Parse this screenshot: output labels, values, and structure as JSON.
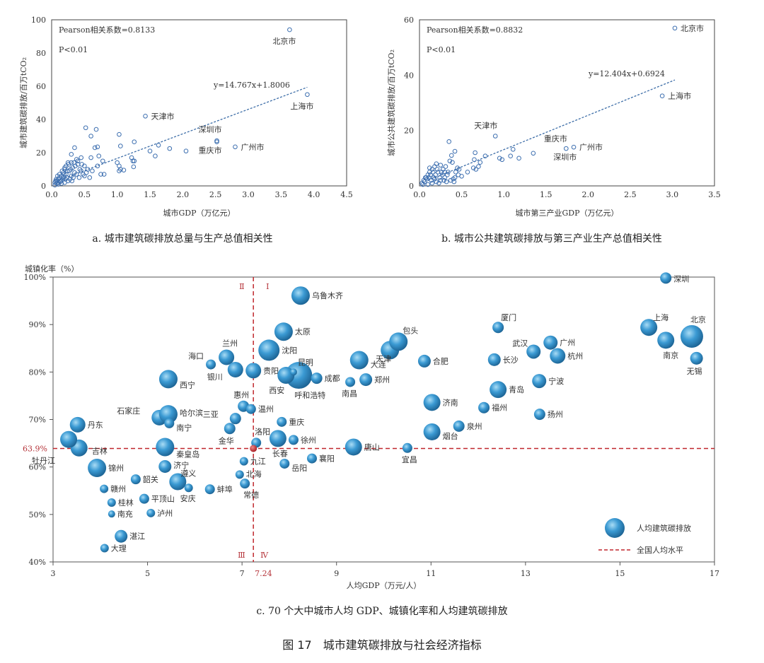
{
  "figure_title": "图 17　城市建筑碳排放与社会经济指标",
  "chart_data": [
    {
      "id": "a",
      "type": "scatter",
      "caption": "a. 城市建筑碳排放总量与生产总值相关性",
      "xlabel": "城市GDP（万亿元）",
      "ylabel": "城市建筑碳排放/百万tCO₂",
      "xlim": [
        0,
        4.5
      ],
      "ylim": [
        0,
        100
      ],
      "xticks": [
        "0.0",
        "0.5",
        "1.0",
        "1.5",
        "2.0",
        "2.5",
        "3.0",
        "3.5",
        "4.0",
        "4.5"
      ],
      "yticks": [
        "0",
        "20",
        "40",
        "60",
        "80",
        "100"
      ],
      "pearson": "Pearson相关系数=0.8133",
      "p_value": "P<0.01",
      "trend_label": "y=14.767x+1.8006",
      "trend": {
        "slope": 14.767,
        "intercept": 1.8006,
        "x_range": [
          0.15,
          3.9
        ]
      },
      "labeled_points": [
        {
          "name": "北京市",
          "x": 3.63,
          "y": 94
        },
        {
          "name": "上海市",
          "x": 3.9,
          "y": 55
        },
        {
          "name": "天津市",
          "x": 1.43,
          "y": 42
        },
        {
          "name": "深圳市",
          "x": 2.52,
          "y": 27.2
        },
        {
          "name": "重庆市",
          "x": 2.52,
          "y": 26.5
        },
        {
          "name": "广州市",
          "x": 2.8,
          "y": 23.5
        }
      ],
      "points": [
        [
          0.05,
          2
        ],
        [
          0.08,
          3
        ],
        [
          0.1,
          4
        ],
        [
          0.12,
          5
        ],
        [
          0.15,
          6
        ],
        [
          0.18,
          8
        ],
        [
          0.2,
          10
        ],
        [
          0.22,
          12
        ],
        [
          0.25,
          14
        ],
        [
          0.3,
          19
        ],
        [
          0.35,
          23
        ],
        [
          0.38,
          16
        ],
        [
          0.4,
          13
        ],
        [
          0.45,
          17
        ],
        [
          0.5,
          12
        ],
        [
          0.52,
          35
        ],
        [
          0.6,
          30
        ],
        [
          0.68,
          34
        ],
        [
          0.66,
          23
        ],
        [
          0.7,
          23.5
        ],
        [
          0.6,
          17
        ],
        [
          0.72,
          18
        ],
        [
          0.78,
          15
        ],
        [
          0.7,
          12
        ],
        [
          0.75,
          7
        ],
        [
          0.8,
          7
        ],
        [
          0.55,
          10
        ],
        [
          0.62,
          9
        ],
        [
          0.45,
          9
        ],
        [
          0.35,
          8
        ],
        [
          0.3,
          6
        ],
        [
          0.28,
          4
        ],
        [
          0.25,
          3
        ],
        [
          0.2,
          2
        ],
        [
          0.15,
          1.5
        ],
        [
          0.1,
          1
        ],
        [
          0.05,
          0.5
        ],
        [
          0.42,
          5
        ],
        [
          0.5,
          6
        ],
        [
          0.58,
          5
        ],
        [
          1.0,
          14
        ],
        [
          1.03,
          31
        ],
        [
          1.05,
          24
        ],
        [
          1.03,
          12
        ],
        [
          1.05,
          10
        ],
        [
          1.03,
          9
        ],
        [
          1.1,
          9.5
        ],
        [
          1.22,
          17
        ],
        [
          1.24,
          15
        ],
        [
          1.26,
          15
        ],
        [
          1.25,
          11.5
        ],
        [
          1.26,
          26.5
        ],
        [
          1.5,
          21
        ],
        [
          1.58,
          18
        ],
        [
          1.63,
          24.5
        ],
        [
          1.8,
          22.5
        ],
        [
          2.05,
          21
        ],
        [
          0.18,
          5
        ],
        [
          0.22,
          7
        ],
        [
          0.27,
          9
        ],
        [
          0.32,
          11
        ],
        [
          0.36,
          12
        ],
        [
          0.4,
          15
        ],
        [
          0.14,
          3
        ],
        [
          0.12,
          7
        ],
        [
          0.16,
          9
        ],
        [
          0.2,
          11
        ],
        [
          0.3,
          14
        ],
        [
          0.26,
          13
        ],
        [
          0.33,
          5
        ],
        [
          0.38,
          7
        ],
        [
          0.48,
          7
        ],
        [
          0.53,
          8
        ],
        [
          0.08,
          1.5
        ],
        [
          0.13,
          2.5
        ],
        [
          0.17,
          4
        ],
        [
          0.23,
          5
        ],
        [
          0.09,
          6
        ],
        [
          0.19,
          7
        ],
        [
          0.24,
          9
        ],
        [
          0.29,
          10
        ],
        [
          0.07,
          4
        ],
        [
          0.11,
          2
        ],
        [
          0.34,
          14
        ],
        [
          0.43,
          10
        ],
        [
          0.46,
          13
        ],
        [
          0.31,
          3
        ],
        [
          0.21,
          4
        ],
        [
          0.06,
          3
        ]
      ]
    },
    {
      "id": "b",
      "type": "scatter",
      "caption": "b. 城市公共建筑碳排放与第三产业生产总值相关性",
      "xlabel": "城市第三产业GDP（万亿元）",
      "ylabel": "城市公共建筑碳排放/百万tCO₂",
      "xlim": [
        0,
        3.5
      ],
      "ylim": [
        0,
        60
      ],
      "xticks": [
        "0.0",
        "0.5",
        "1.0",
        "1.5",
        "2.0",
        "2.5",
        "3.0",
        "3.5"
      ],
      "yticks": [
        "0",
        "20",
        "40",
        "60"
      ],
      "pearson": "Pearson相关系数=0.8832",
      "p_value": "P<0.01",
      "trend_label": "y=12.404x+0.6924",
      "trend": {
        "slope": 12.404,
        "intercept": 0.6924,
        "x_range": [
          0.1,
          3.03
        ]
      },
      "labeled_points": [
        {
          "name": "北京市",
          "x": 3.03,
          "y": 57
        },
        {
          "name": "上海市",
          "x": 2.88,
          "y": 32.5
        },
        {
          "name": "天津市",
          "x": 0.9,
          "y": 18
        },
        {
          "name": "重庆市",
          "x": 1.35,
          "y": 11.8
        },
        {
          "name": "深圳市",
          "x": 1.74,
          "y": 13.5
        },
        {
          "name": "广州市",
          "x": 1.83,
          "y": 14
        }
      ],
      "points": [
        [
          0.03,
          1
        ],
        [
          0.05,
          2
        ],
        [
          0.08,
          3
        ],
        [
          0.1,
          4
        ],
        [
          0.12,
          5
        ],
        [
          0.15,
          6
        ],
        [
          0.18,
          7
        ],
        [
          0.2,
          8
        ],
        [
          0.25,
          7.5
        ],
        [
          0.28,
          6
        ],
        [
          0.3,
          5
        ],
        [
          0.35,
          16
        ],
        [
          0.38,
          11
        ],
        [
          0.42,
          12.5
        ],
        [
          0.36,
          9
        ],
        [
          0.39,
          8.5
        ],
        [
          0.45,
          6.5
        ],
        [
          0.47,
          6
        ],
        [
          0.5,
          3.5
        ],
        [
          0.42,
          3
        ],
        [
          0.4,
          2.5
        ],
        [
          0.33,
          4
        ],
        [
          0.3,
          3
        ],
        [
          0.25,
          2
        ],
        [
          0.2,
          1.5
        ],
        [
          0.15,
          1
        ],
        [
          0.1,
          0.5
        ],
        [
          0.57,
          5
        ],
        [
          0.64,
          6.5
        ],
        [
          0.65,
          9.5
        ],
        [
          0.66,
          12
        ],
        [
          0.67,
          6
        ],
        [
          0.7,
          7
        ],
        [
          0.72,
          8.5
        ],
        [
          0.78,
          10.8
        ],
        [
          0.95,
          10
        ],
        [
          0.98,
          9.5
        ],
        [
          1.08,
          10.8
        ],
        [
          1.11,
          13.2
        ],
        [
          1.18,
          10
        ],
        [
          0.06,
          1.5
        ],
        [
          0.09,
          2.5
        ],
        [
          0.11,
          3
        ],
        [
          0.13,
          4
        ],
        [
          0.16,
          5
        ],
        [
          0.19,
          4
        ],
        [
          0.22,
          5
        ],
        [
          0.24,
          3
        ],
        [
          0.27,
          4
        ],
        [
          0.14,
          2
        ],
        [
          0.07,
          3
        ],
        [
          0.12,
          6.5
        ],
        [
          0.17,
          3
        ],
        [
          0.21,
          6
        ],
        [
          0.26,
          5
        ],
        [
          0.31,
          7
        ],
        [
          0.34,
          5
        ],
        [
          0.43,
          5
        ],
        [
          0.04,
          0.5
        ],
        [
          0.18,
          2.5
        ],
        [
          0.23,
          1
        ],
        [
          0.29,
          2
        ],
        [
          0.32,
          1.5
        ],
        [
          0.37,
          2
        ],
        [
          0.46,
          4
        ],
        [
          0.41,
          1.5
        ]
      ]
    },
    {
      "id": "c",
      "type": "scatter",
      "subtype": "bubble",
      "caption": "c. 70 个大中城市人均 GDP、城镇化率和人均建筑碳排放",
      "xlabel": "人均GDP（万元/人）",
      "ylabel": "城镇化率（%）",
      "xlim": [
        3,
        17
      ],
      "ylim": [
        40,
        100
      ],
      "xticks": [
        "3",
        "5",
        "7",
        "9",
        "11",
        "13",
        "15",
        "17"
      ],
      "yticks": [
        "40%",
        "50%",
        "60%",
        "70%",
        "80%",
        "90%",
        "100%"
      ],
      "national_avg": {
        "x": 7.24,
        "y": 63.9,
        "x_label": "7.24",
        "y_label": "63.9%"
      },
      "quadrants": [
        "Ⅰ",
        "Ⅱ",
        "Ⅲ",
        "Ⅳ"
      ],
      "legend": {
        "bubble": "人均建筑碳排放",
        "line": "全国人均水平",
        "position": "bottom-right"
      },
      "colors": {
        "bubble": "#2f8fcb",
        "national": "#c0272d"
      },
      "size_note": "relative bubble size (per-capita building carbon emission)",
      "cities": [
        {
          "name": "乌鲁木齐",
          "x": 8.24,
          "y": 96.1,
          "s": 13
        },
        {
          "name": "太原",
          "x": 7.88,
          "y": 88.5,
          "s": 13
        },
        {
          "name": "沈阳",
          "x": 7.57,
          "y": 84.6,
          "s": 15
        },
        {
          "name": "兰州",
          "x": 6.67,
          "y": 83.1,
          "s": 11
        },
        {
          "name": "海口",
          "x": 6.34,
          "y": 81.6,
          "s": 7
        },
        {
          "name": "银川",
          "x": 6.86,
          "y": 80.5,
          "s": 11
        },
        {
          "name": "贵阳",
          "x": 7.24,
          "y": 80.3,
          "s": 11
        },
        {
          "name": "西宁",
          "x": 5.44,
          "y": 78.5,
          "s": 13
        },
        {
          "name": "呼和浩特",
          "x": 8.2,
          "y": 79.3,
          "s": 19
        },
        {
          "name": "西安",
          "x": 7.93,
          "y": 79.3,
          "s": 12
        },
        {
          "name": "昆明",
          "x": 8.09,
          "y": 80.0,
          "s": 5
        },
        {
          "name": "成都",
          "x": 8.58,
          "y": 78.7,
          "s": 8
        },
        {
          "name": "南昌",
          "x": 9.29,
          "y": 77.9,
          "s": 7
        },
        {
          "name": "郑州",
          "x": 9.62,
          "y": 78.4,
          "s": 9
        },
        {
          "name": "大连",
          "x": 9.48,
          "y": 82.5,
          "s": 13
        },
        {
          "name": "天津",
          "x": 10.13,
          "y": 84.6,
          "s": 13
        },
        {
          "name": "包头",
          "x": 10.31,
          "y": 86.4,
          "s": 13
        },
        {
          "name": "合肥",
          "x": 10.86,
          "y": 82.3,
          "s": 9
        },
        {
          "name": "惠州",
          "x": 7.03,
          "y": 72.8,
          "s": 8
        },
        {
          "name": "温州",
          "x": 7.19,
          "y": 72.2,
          "s": 7
        },
        {
          "name": "三亚",
          "x": 6.86,
          "y": 70.2,
          "s": 8
        },
        {
          "name": "金华",
          "x": 6.74,
          "y": 68.1,
          "s": 8
        },
        {
          "name": "石家庄",
          "x": 5.25,
          "y": 70.4,
          "s": 11
        },
        {
          "name": "哈尔滨",
          "x": 5.44,
          "y": 71.1,
          "s": 13
        },
        {
          "name": "南宁",
          "x": 5.46,
          "y": 69.2,
          "s": 7
        },
        {
          "name": "丹东",
          "x": 3.52,
          "y": 68.9,
          "s": 11
        },
        {
          "name": "吉林",
          "x": 3.55,
          "y": 64.0,
          "s": 12
        },
        {
          "name": "牡丹江",
          "x": 3.33,
          "y": 65.8,
          "s": 12
        },
        {
          "name": "秦皇岛",
          "x": 5.37,
          "y": 64.2,
          "s": 13
        },
        {
          "name": "洛阳",
          "x": 7.3,
          "y": 65.1,
          "s": 7
        },
        {
          "name": "长春",
          "x": 7.76,
          "y": 66.0,
          "s": 12
        },
        {
          "name": "徐州",
          "x": 8.09,
          "y": 65.7,
          "s": 7
        },
        {
          "name": "重庆",
          "x": 7.84,
          "y": 69.5,
          "s": 7
        },
        {
          "name": "唐山",
          "x": 9.36,
          "y": 64.2,
          "s": 12
        },
        {
          "name": "宜昌",
          "x": 10.5,
          "y": 64.0,
          "s": 7
        },
        {
          "name": "九江",
          "x": 7.04,
          "y": 61.2,
          "s": 6
        },
        {
          "name": "北海",
          "x": 6.95,
          "y": 58.4,
          "s": 6
        },
        {
          "name": "常德",
          "x": 7.06,
          "y": 56.5,
          "s": 7
        },
        {
          "name": "岳阳",
          "x": 7.9,
          "y": 60.7,
          "s": 7
        },
        {
          "name": "襄阳",
          "x": 8.48,
          "y": 61.8,
          "s": 7
        },
        {
          "name": "锦州",
          "x": 3.93,
          "y": 59.8,
          "s": 13
        },
        {
          "name": "济宁",
          "x": 5.37,
          "y": 60.1,
          "s": 9
        },
        {
          "name": "韶关",
          "x": 4.75,
          "y": 57.4,
          "s": 7
        },
        {
          "name": "遵义",
          "x": 5.64,
          "y": 56.9,
          "s": 12
        },
        {
          "name": "安庆",
          "x": 5.87,
          "y": 55.6,
          "s": 6
        },
        {
          "name": "蚌埠",
          "x": 6.32,
          "y": 55.3,
          "s": 7
        },
        {
          "name": "赣州",
          "x": 4.08,
          "y": 55.4,
          "s": 6
        },
        {
          "name": "平顶山",
          "x": 4.93,
          "y": 53.3,
          "s": 7
        },
        {
          "name": "桂林",
          "x": 4.24,
          "y": 52.5,
          "s": 6
        },
        {
          "name": "南充",
          "x": 4.24,
          "y": 50.1,
          "s": 5
        },
        {
          "name": "泸州",
          "x": 5.07,
          "y": 50.3,
          "s": 6
        },
        {
          "name": "湛江",
          "x": 4.44,
          "y": 45.4,
          "s": 9
        },
        {
          "name": "大理",
          "x": 4.09,
          "y": 42.9,
          "s": 6
        },
        {
          "name": "泉州",
          "x": 11.59,
          "y": 68.6,
          "s": 8
        },
        {
          "name": "烟台",
          "x": 11.02,
          "y": 67.4,
          "s": 12
        },
        {
          "name": "济南",
          "x": 11.02,
          "y": 73.6,
          "s": 12
        },
        {
          "name": "福州",
          "x": 12.12,
          "y": 72.5,
          "s": 8
        },
        {
          "name": "青岛",
          "x": 12.42,
          "y": 76.3,
          "s": 12
        },
        {
          "name": "厦门",
          "x": 12.42,
          "y": 89.4,
          "s": 8
        },
        {
          "name": "长沙",
          "x": 12.34,
          "y": 82.6,
          "s": 9
        },
        {
          "name": "武汉",
          "x": 13.17,
          "y": 84.3,
          "s": 10
        },
        {
          "name": "广州",
          "x": 13.53,
          "y": 86.2,
          "s": 10
        },
        {
          "name": "杭州",
          "x": 13.68,
          "y": 83.4,
          "s": 11
        },
        {
          "name": "宁波",
          "x": 13.29,
          "y": 78.1,
          "s": 10
        },
        {
          "name": "扬州",
          "x": 13.3,
          "y": 71.1,
          "s": 8
        },
        {
          "name": "深圳",
          "x": 15.97,
          "y": 99.8,
          "s": 8
        },
        {
          "name": "上海",
          "x": 15.61,
          "y": 89.4,
          "s": 12
        },
        {
          "name": "南京",
          "x": 15.97,
          "y": 86.7,
          "s": 12
        },
        {
          "name": "北京",
          "x": 16.52,
          "y": 87.5,
          "s": 16
        },
        {
          "name": "无锡",
          "x": 16.62,
          "y": 82.9,
          "s": 9
        }
      ]
    }
  ]
}
